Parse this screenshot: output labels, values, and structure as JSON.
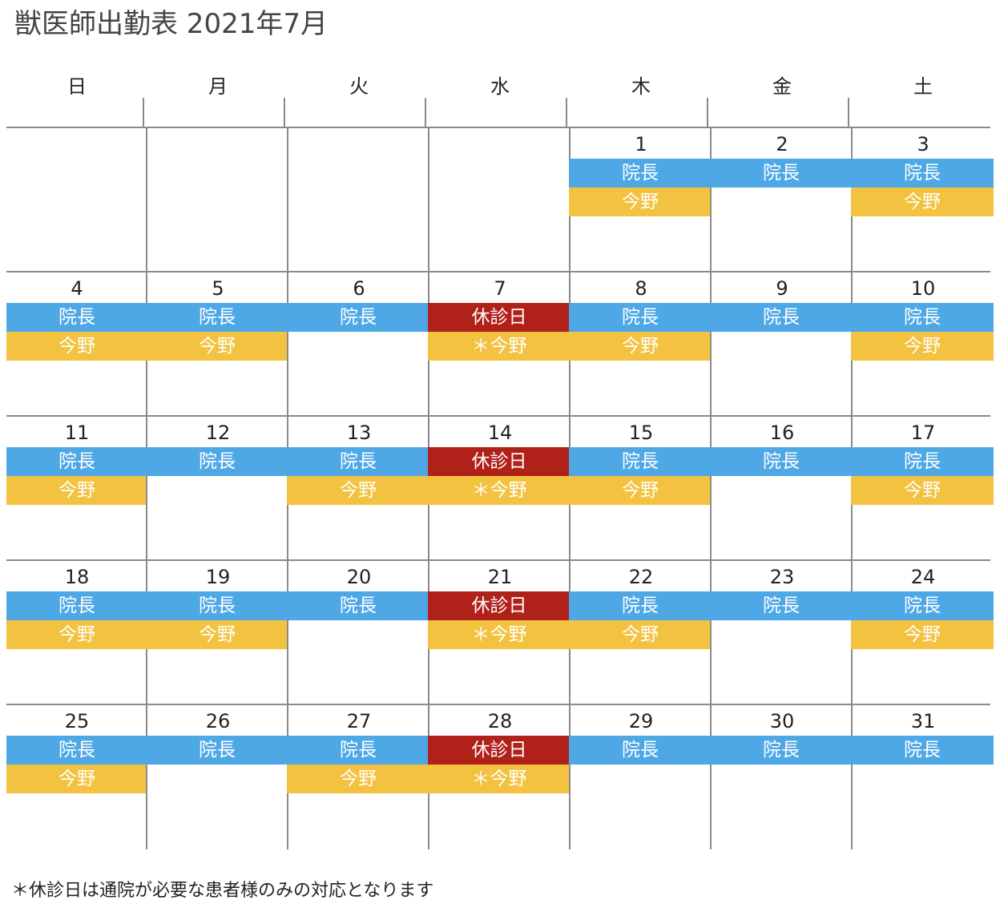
{
  "title": "獣医師出勤表 2021年7月",
  "weekdays": [
    "日",
    "月",
    "火",
    "水",
    "木",
    "金",
    "土"
  ],
  "colors": {
    "director": "#4fa8e6",
    "imano": "#f2c240",
    "closed": "#b02219",
    "grid": "#8a8a8a"
  },
  "weeks": [
    [
      {
        "day": "",
        "top": "",
        "bottom": ""
      },
      {
        "day": "",
        "top": "",
        "bottom": ""
      },
      {
        "day": "",
        "top": "",
        "bottom": ""
      },
      {
        "day": "",
        "top": "",
        "bottom": ""
      },
      {
        "day": "1",
        "top": "院長",
        "bottom": "今野"
      },
      {
        "day": "2",
        "top": "院長",
        "bottom": ""
      },
      {
        "day": "3",
        "top": "院長",
        "bottom": "今野"
      }
    ],
    [
      {
        "day": "4",
        "top": "院長",
        "bottom": "今野"
      },
      {
        "day": "5",
        "top": "院長",
        "bottom": "今野"
      },
      {
        "day": "6",
        "top": "院長",
        "bottom": ""
      },
      {
        "day": "7",
        "top": "休診日",
        "bottom": "＊今野",
        "closed": true
      },
      {
        "day": "8",
        "top": "院長",
        "bottom": "今野"
      },
      {
        "day": "9",
        "top": "院長",
        "bottom": ""
      },
      {
        "day": "10",
        "top": "院長",
        "bottom": "今野"
      }
    ],
    [
      {
        "day": "11",
        "top": "院長",
        "bottom": "今野"
      },
      {
        "day": "12",
        "top": "院長",
        "bottom": ""
      },
      {
        "day": "13",
        "top": "院長",
        "bottom": "今野"
      },
      {
        "day": "14",
        "top": "休診日",
        "bottom": "＊今野",
        "closed": true
      },
      {
        "day": "15",
        "top": "院長",
        "bottom": "今野"
      },
      {
        "day": "16",
        "top": "院長",
        "bottom": ""
      },
      {
        "day": "17",
        "top": "院長",
        "bottom": "今野"
      }
    ],
    [
      {
        "day": "18",
        "top": "院長",
        "bottom": "今野"
      },
      {
        "day": "19",
        "top": "院長",
        "bottom": "今野"
      },
      {
        "day": "20",
        "top": "院長",
        "bottom": ""
      },
      {
        "day": "21",
        "top": "休診日",
        "bottom": "＊今野",
        "closed": true
      },
      {
        "day": "22",
        "top": "院長",
        "bottom": "今野"
      },
      {
        "day": "23",
        "top": "院長",
        "bottom": ""
      },
      {
        "day": "24",
        "top": "院長",
        "bottom": "今野"
      }
    ],
    [
      {
        "day": "25",
        "top": "院長",
        "bottom": "今野"
      },
      {
        "day": "26",
        "top": "院長",
        "bottom": ""
      },
      {
        "day": "27",
        "top": "院長",
        "bottom": "今野"
      },
      {
        "day": "28",
        "top": "休診日",
        "bottom": "＊今野",
        "closed": true
      },
      {
        "day": "29",
        "top": "院長",
        "bottom": ""
      },
      {
        "day": "30",
        "top": "院長",
        "bottom": ""
      },
      {
        "day": "31",
        "top": "院長",
        "bottom": ""
      }
    ]
  ],
  "footnote": "＊休診日は通院が必要な患者様のみの対応となります"
}
